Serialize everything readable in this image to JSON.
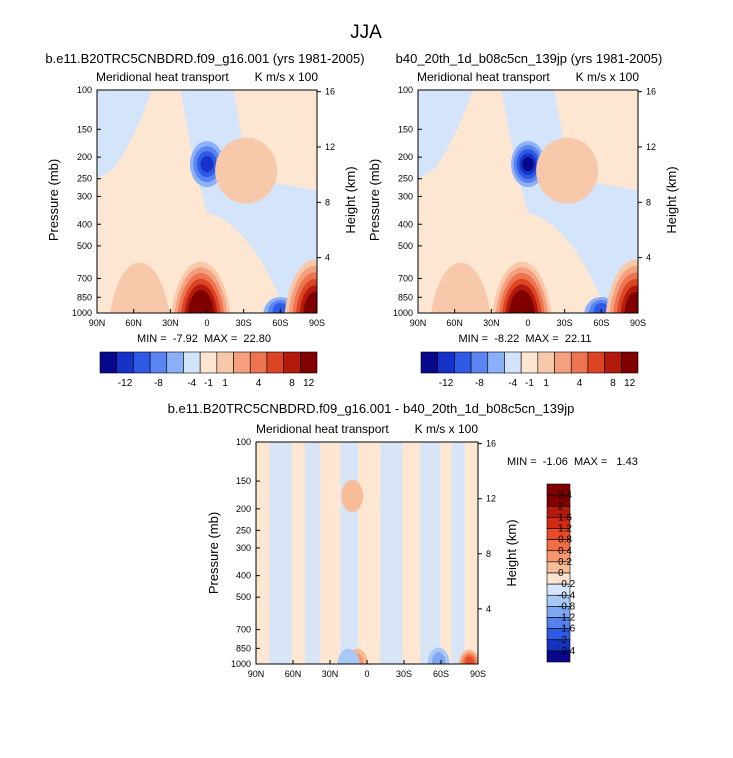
{
  "figure": {
    "title": "JJA",
    "field_label": "Meridional heat transport",
    "units_label": "K m/s x 100",
    "left_axis_label": "Pressure (mb)",
    "right_axis_label": "Height (km)"
  },
  "chart_data": [
    {
      "type": "heatmap",
      "id": "case1",
      "title": "b.e11.B20TRC5CNBDRD.f09_g16.001 (yrs 1981-2005)",
      "stats_label": "MIN =  -7.92  MAX =  22.80",
      "min": -7.92,
      "max": 22.8,
      "x_ticks": [
        "90N",
        "60N",
        "30N",
        "0",
        "30S",
        "60S",
        "90S"
      ],
      "pressure_ticks": [
        100,
        150,
        200,
        250,
        300,
        400,
        500,
        700,
        850,
        1000
      ],
      "height_ticks": [
        16,
        12,
        8,
        4
      ],
      "features": [
        {
          "lat": 0,
          "p": 215,
          "value": -7.9,
          "sign": "neg"
        },
        {
          "lat": 5,
          "p": 960,
          "value": 22.8,
          "sign": "pos"
        },
        {
          "lat": -60,
          "p": 950,
          "value": -4,
          "sign": "neg"
        },
        {
          "lat": -88,
          "p": 940,
          "value": 12,
          "sign": "pos"
        },
        {
          "lat": -32,
          "p": 230,
          "value": 1.2,
          "sign": "pos"
        },
        {
          "lat": 55,
          "p": 970,
          "value": 1.5,
          "sign": "pos"
        }
      ],
      "colorbar": {
        "labels": [
          "-12",
          "-8",
          "-4",
          "-1",
          "1",
          "4",
          "8",
          "12"
        ]
      }
    },
    {
      "type": "heatmap",
      "id": "case2",
      "title": "b40_20th_1d_b08c5cn_139jp (yrs 1981-2005)",
      "stats_label": "MIN =  -8.22  MAX =  22.11",
      "min": -8.22,
      "max": 22.11,
      "x_ticks": [
        "90N",
        "60N",
        "30N",
        "0",
        "30S",
        "60S",
        "90S"
      ],
      "pressure_ticks": [
        100,
        150,
        200,
        250,
        300,
        400,
        500,
        700,
        850,
        1000
      ],
      "height_ticks": [
        16,
        12,
        8,
        4
      ],
      "features": [
        {
          "lat": 0,
          "p": 215,
          "value": -8.2,
          "sign": "neg"
        },
        {
          "lat": 5,
          "p": 960,
          "value": 22.1,
          "sign": "pos"
        },
        {
          "lat": -60,
          "p": 950,
          "value": -4,
          "sign": "neg"
        },
        {
          "lat": -88,
          "p": 940,
          "value": 12,
          "sign": "pos"
        },
        {
          "lat": -32,
          "p": 230,
          "value": 1.2,
          "sign": "pos"
        },
        {
          "lat": 55,
          "p": 970,
          "value": 1.5,
          "sign": "pos"
        }
      ],
      "colorbar": {
        "labels": [
          "-12",
          "-8",
          "-4",
          "-1",
          "1",
          "4",
          "8",
          "12"
        ]
      }
    },
    {
      "type": "heatmap",
      "id": "difference",
      "title": "b.e11.B20TRC5CNBDRD.f09_g16.001 - b40_20th_1d_b08c5cn_139jp",
      "stats_label": "MIN =  -1.06  MAX =   1.43",
      "min": -1.06,
      "max": 1.43,
      "x_ticks": [
        "90N",
        "60N",
        "30N",
        "0",
        "30S",
        "60S",
        "90S"
      ],
      "pressure_ticks": [
        100,
        150,
        200,
        250,
        300,
        400,
        500,
        700,
        850,
        1000
      ],
      "height_ticks": [
        16,
        12,
        8,
        4
      ],
      "features": [
        {
          "lat": -83,
          "p": 960,
          "value": 1.43,
          "sign": "pos"
        },
        {
          "lat": 8,
          "p": 950,
          "value": 0.4,
          "sign": "pos"
        },
        {
          "lat": 12,
          "p": 175,
          "value": 0.3,
          "sign": "pos"
        },
        {
          "lat": -58,
          "p": 940,
          "value": -0.4,
          "sign": "neg"
        },
        {
          "lat": 15,
          "p": 950,
          "value": -0.3,
          "sign": "neg"
        }
      ],
      "colorbar": {
        "labels": [
          "2.4",
          "2",
          "1.6",
          "1.2",
          "0.8",
          "0.4",
          "0.2",
          "0",
          "-0.2",
          "-0.4",
          "-0.8",
          "-1.2",
          "-1.6",
          "-2",
          "-2.4"
        ]
      }
    }
  ],
  "colors": {
    "full_palette": [
      "#08088c",
      "#1632c8",
      "#2e5ae6",
      "#5a84f0",
      "#8cb0f8",
      "#d2e4fa",
      "#fce6d2",
      "#f8c8aa",
      "#f4a07e",
      "#ec7450",
      "#dc4424",
      "#b41a0c",
      "#800000"
    ],
    "diff_palette": [
      "#800000",
      "#b41a0c",
      "#d22a14",
      "#e64a28",
      "#f06e46",
      "#f5986e",
      "#f8bc98",
      "#fde4d0",
      "#d6e6fa",
      "#a8c8f6",
      "#7ea6f2",
      "#5680ea",
      "#2e5ae6",
      "#1432c0",
      "#08088c"
    ],
    "background_pos": "#fde6d2",
    "background_neg": "#d4e4fa"
  }
}
